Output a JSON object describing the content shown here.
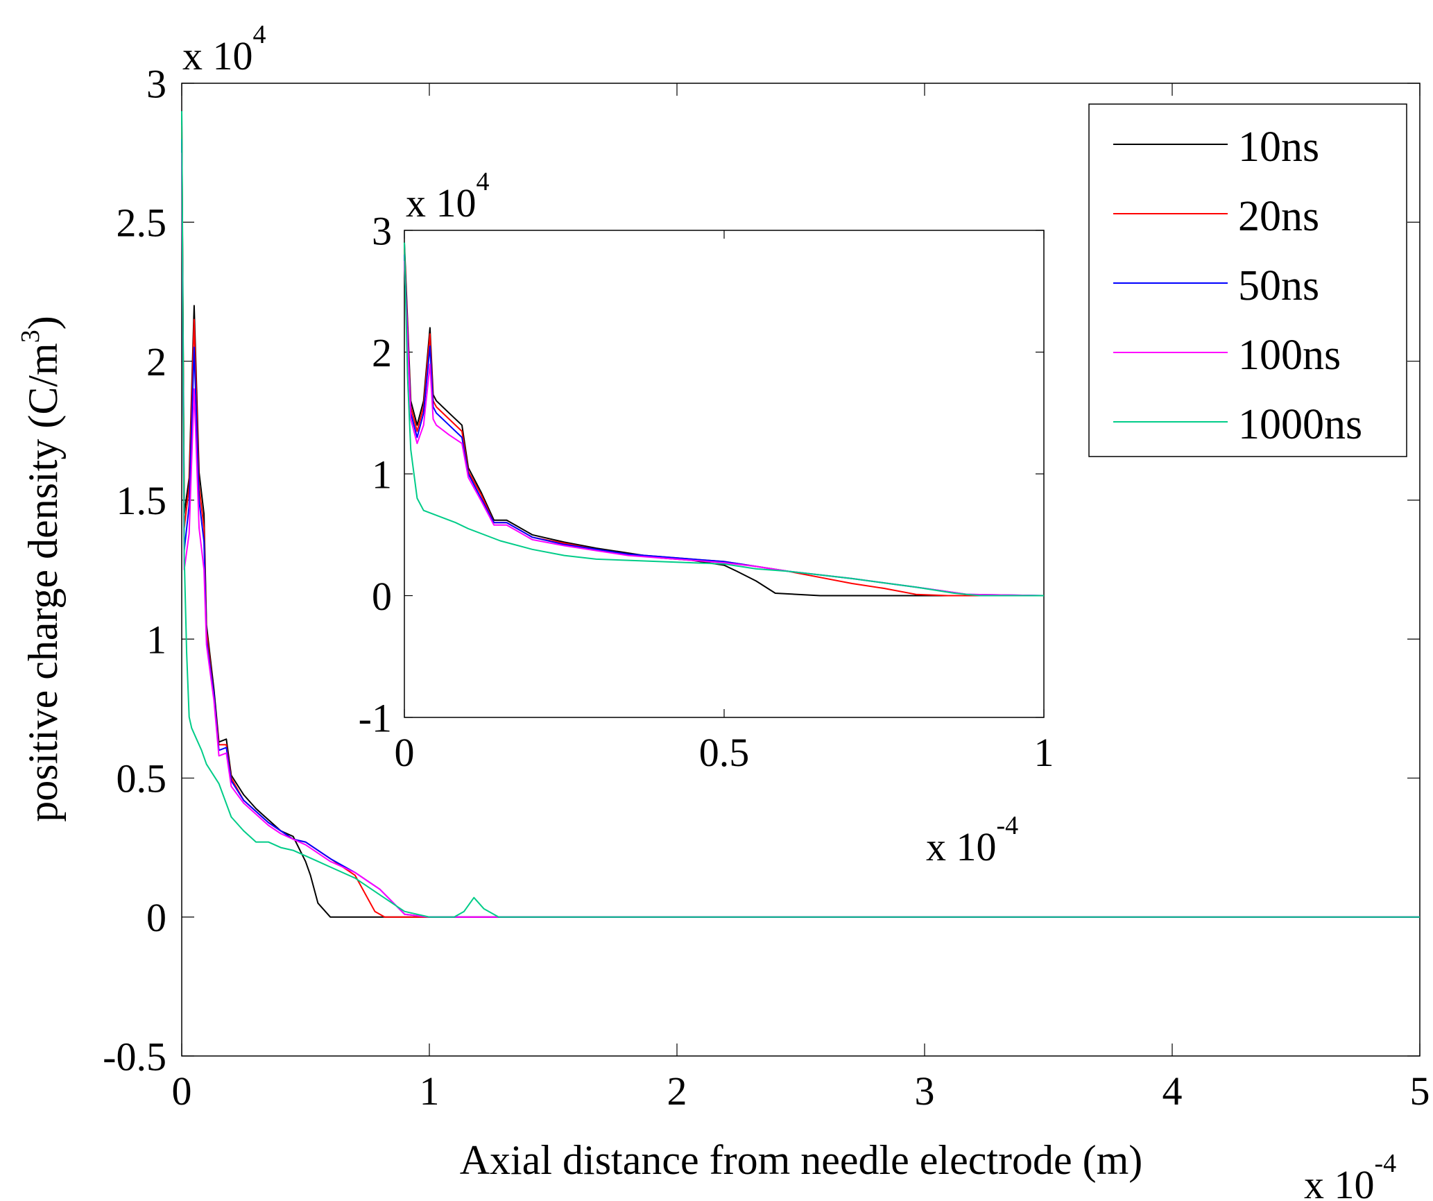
{
  "chart_data": [
    {
      "id": "main",
      "type": "line",
      "xlabel": "Axial distance from needle electrode (m)",
      "ylabel": "positive charge density (C/m³)",
      "ylabel_main": "positive charge density (C/m",
      "ylabel_sup": "3",
      "ylabel_close": ")",
      "xlim": [
        0,
        5
      ],
      "ylim": [
        -0.5,
        3
      ],
      "x_ticks": [
        0,
        1,
        2,
        3,
        4,
        5
      ],
      "y_ticks": [
        -0.5,
        0,
        0.5,
        1,
        1.5,
        2,
        2.5,
        3
      ],
      "x_tick_labels": [
        "0",
        "1",
        "2",
        "3",
        "4",
        "5"
      ],
      "y_tick_labels": [
        "-0.5",
        "0",
        "0.5",
        "1",
        "1.5",
        "2",
        "2.5",
        "3"
      ],
      "x_multiplier": {
        "base": "x 10",
        "exp": "-4"
      },
      "y_multiplier": {
        "base": "x 10",
        "exp": "4"
      },
      "legend": {
        "position": "top-right",
        "entries": [
          "10ns",
          "20ns",
          "50ns",
          "100ns",
          "1000ns"
        ]
      },
      "series": [
        {
          "name": "10ns",
          "color": "#000000",
          "x": [
            0,
            0.01,
            0.03,
            0.05,
            0.07,
            0.09,
            0.1,
            0.13,
            0.15,
            0.18,
            0.2,
            0.25,
            0.3,
            0.35,
            0.4,
            0.45,
            0.5,
            0.52,
            0.55,
            0.6,
            0.65,
            1.0,
            2.0,
            3.0,
            4.0,
            5.0
          ],
          "y": [
            2.9,
            1.45,
            1.58,
            2.2,
            1.6,
            1.45,
            1.05,
            0.82,
            0.63,
            0.64,
            0.51,
            0.44,
            0.39,
            0.35,
            0.31,
            0.29,
            0.2,
            0.15,
            0.05,
            0,
            0,
            0,
            0,
            0,
            0,
            0
          ]
        },
        {
          "name": "20ns",
          "color": "#ff0000",
          "x": [
            0,
            0.01,
            0.03,
            0.05,
            0.07,
            0.09,
            0.1,
            0.13,
            0.15,
            0.18,
            0.2,
            0.25,
            0.3,
            0.35,
            0.4,
            0.45,
            0.5,
            0.6,
            0.65,
            0.7,
            0.78,
            0.82,
            0.86,
            1.0,
            2.0,
            3.0,
            4.0,
            5.0
          ],
          "y": [
            2.85,
            1.4,
            1.55,
            2.15,
            1.55,
            1.4,
            1.03,
            0.8,
            0.62,
            0.62,
            0.5,
            0.42,
            0.38,
            0.34,
            0.31,
            0.28,
            0.27,
            0.21,
            0.18,
            0.15,
            0.02,
            0,
            0,
            0,
            0,
            0,
            0,
            0
          ]
        },
        {
          "name": "50ns",
          "color": "#0000ff",
          "x": [
            0,
            0.01,
            0.03,
            0.05,
            0.07,
            0.09,
            0.1,
            0.13,
            0.15,
            0.18,
            0.2,
            0.25,
            0.3,
            0.35,
            0.4,
            0.45,
            0.5,
            0.6,
            0.7,
            0.8,
            0.9,
            1.0,
            2.0,
            3.0,
            4.0,
            5.0
          ],
          "y": [
            2.8,
            1.32,
            1.48,
            2.05,
            1.5,
            1.35,
            1.0,
            0.8,
            0.6,
            0.61,
            0.49,
            0.42,
            0.38,
            0.34,
            0.31,
            0.28,
            0.27,
            0.21,
            0.16,
            0.1,
            0.01,
            0,
            0,
            0,
            0,
            0
          ]
        },
        {
          "name": "100ns",
          "color": "#ff00ff",
          "x": [
            0,
            0.01,
            0.03,
            0.05,
            0.07,
            0.09,
            0.1,
            0.13,
            0.15,
            0.18,
            0.2,
            0.25,
            0.3,
            0.35,
            0.4,
            0.45,
            0.5,
            0.6,
            0.7,
            0.8,
            0.9,
            1.0,
            2.0,
            3.0,
            4.0,
            5.0
          ],
          "y": [
            2.75,
            1.25,
            1.38,
            1.9,
            1.4,
            1.25,
            0.98,
            0.78,
            0.58,
            0.59,
            0.47,
            0.41,
            0.37,
            0.33,
            0.3,
            0.28,
            0.26,
            0.2,
            0.16,
            0.1,
            0.01,
            0,
            0,
            0,
            0,
            0
          ]
        },
        {
          "name": "1000ns",
          "color": "#00cc88",
          "x": [
            0,
            0.01,
            0.02,
            0.03,
            0.04,
            0.06,
            0.08,
            0.1,
            0.15,
            0.2,
            0.25,
            0.3,
            0.35,
            0.4,
            0.45,
            0.5,
            0.55,
            0.6,
            0.7,
            0.8,
            0.9,
            1.0,
            1.1,
            1.14,
            1.18,
            1.22,
            1.28,
            1.35,
            2.0,
            3.0,
            4.0,
            5.0
          ],
          "y": [
            2.9,
            1.3,
            0.95,
            0.72,
            0.68,
            0.64,
            0.6,
            0.55,
            0.48,
            0.36,
            0.31,
            0.27,
            0.27,
            0.25,
            0.24,
            0.22,
            0.2,
            0.18,
            0.14,
            0.08,
            0.02,
            0,
            0,
            0.02,
            0.07,
            0.03,
            0,
            0,
            0,
            0,
            0,
            0
          ]
        }
      ]
    },
    {
      "id": "inset",
      "type": "line",
      "xlim": [
        0,
        1
      ],
      "ylim": [
        -1,
        3
      ],
      "x_ticks": [
        0,
        0.5,
        1
      ],
      "y_ticks": [
        -1,
        0,
        1,
        2,
        3
      ],
      "x_tick_labels": [
        "0",
        "0.5",
        "1"
      ],
      "y_tick_labels": [
        "-1",
        "0",
        "1",
        "2",
        "3"
      ],
      "x_multiplier": {
        "base": "x 10",
        "exp": "-4"
      },
      "y_multiplier": {
        "base": "x 10",
        "exp": "4"
      },
      "series": [
        {
          "name": "10ns",
          "color": "#000000",
          "x": [
            0,
            0.01,
            0.02,
            0.03,
            0.04,
            0.045,
            0.05,
            0.07,
            0.09,
            0.1,
            0.12,
            0.14,
            0.16,
            0.2,
            0.25,
            0.3,
            0.35,
            0.4,
            0.45,
            0.5,
            0.52,
            0.55,
            0.58,
            0.65,
            0.75,
            0.85,
            1.0
          ],
          "y": [
            2.9,
            1.6,
            1.4,
            1.6,
            2.2,
            1.65,
            1.6,
            1.5,
            1.4,
            1.05,
            0.85,
            0.62,
            0.62,
            0.5,
            0.44,
            0.39,
            0.35,
            0.31,
            0.29,
            0.25,
            0.2,
            0.12,
            0.02,
            0,
            0,
            0,
            0
          ]
        },
        {
          "name": "20ns",
          "color": "#ff0000",
          "x": [
            0,
            0.01,
            0.02,
            0.03,
            0.04,
            0.045,
            0.05,
            0.07,
            0.09,
            0.1,
            0.12,
            0.14,
            0.16,
            0.2,
            0.25,
            0.3,
            0.35,
            0.4,
            0.45,
            0.5,
            0.55,
            0.6,
            0.65,
            0.7,
            0.75,
            0.8,
            0.85,
            0.9,
            1.0
          ],
          "y": [
            2.85,
            1.55,
            1.35,
            1.55,
            2.15,
            1.6,
            1.55,
            1.45,
            1.35,
            1.02,
            0.83,
            0.6,
            0.6,
            0.48,
            0.43,
            0.38,
            0.34,
            0.32,
            0.3,
            0.28,
            0.24,
            0.2,
            0.15,
            0.1,
            0.06,
            0.01,
            0,
            0,
            0
          ]
        },
        {
          "name": "50ns",
          "color": "#0000ff",
          "x": [
            0,
            0.01,
            0.02,
            0.03,
            0.04,
            0.045,
            0.05,
            0.07,
            0.09,
            0.1,
            0.12,
            0.14,
            0.16,
            0.2,
            0.25,
            0.3,
            0.35,
            0.4,
            0.45,
            0.5,
            0.55,
            0.6,
            0.7,
            0.8,
            0.88,
            1.0
          ],
          "y": [
            2.8,
            1.5,
            1.3,
            1.5,
            2.05,
            1.55,
            1.5,
            1.4,
            1.3,
            1.0,
            0.8,
            0.6,
            0.6,
            0.48,
            0.42,
            0.38,
            0.34,
            0.32,
            0.3,
            0.28,
            0.24,
            0.2,
            0.14,
            0.07,
            0.01,
            0
          ]
        },
        {
          "name": "100ns",
          "color": "#ff00ff",
          "x": [
            0,
            0.01,
            0.02,
            0.03,
            0.04,
            0.045,
            0.05,
            0.07,
            0.09,
            0.1,
            0.12,
            0.14,
            0.16,
            0.2,
            0.25,
            0.3,
            0.35,
            0.4,
            0.45,
            0.5,
            0.55,
            0.6,
            0.7,
            0.8,
            0.88,
            1.0
          ],
          "y": [
            2.75,
            1.45,
            1.25,
            1.4,
            1.9,
            1.45,
            1.4,
            1.32,
            1.25,
            0.97,
            0.78,
            0.58,
            0.58,
            0.46,
            0.41,
            0.37,
            0.33,
            0.31,
            0.29,
            0.27,
            0.24,
            0.2,
            0.14,
            0.07,
            0.01,
            0
          ]
        },
        {
          "name": "1000ns",
          "color": "#00cc88",
          "x": [
            0,
            0.005,
            0.01,
            0.02,
            0.03,
            0.04,
            0.06,
            0.08,
            0.1,
            0.15,
            0.2,
            0.25,
            0.3,
            0.35,
            0.4,
            0.45,
            0.5,
            0.55,
            0.6,
            0.7,
            0.8,
            0.86,
            0.9,
            1.0
          ],
          "y": [
            2.9,
            1.8,
            1.2,
            0.8,
            0.7,
            0.68,
            0.64,
            0.6,
            0.55,
            0.45,
            0.38,
            0.33,
            0.3,
            0.29,
            0.28,
            0.27,
            0.26,
            0.22,
            0.2,
            0.14,
            0.07,
            0.02,
            0,
            0
          ]
        }
      ]
    }
  ]
}
